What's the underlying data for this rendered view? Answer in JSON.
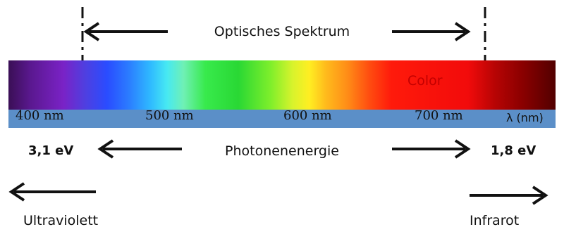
{
  "title": "Optisches Spektrum",
  "energy_label": "Photonenenergie",
  "energy_left": "3,1 eV",
  "energy_right": "1,8 eV",
  "region_left": "Ultraviolett",
  "region_right": "Infrarot",
  "overlay_text": "Color",
  "ticks": [
    "400 nm",
    "500 nm",
    "600 nm",
    "700 nm"
  ],
  "axis_label": "λ (nm)",
  "colors": {
    "scale_bar": "#5b8fc8",
    "overlay_text": "#c30000",
    "arrow": "#111111"
  }
}
